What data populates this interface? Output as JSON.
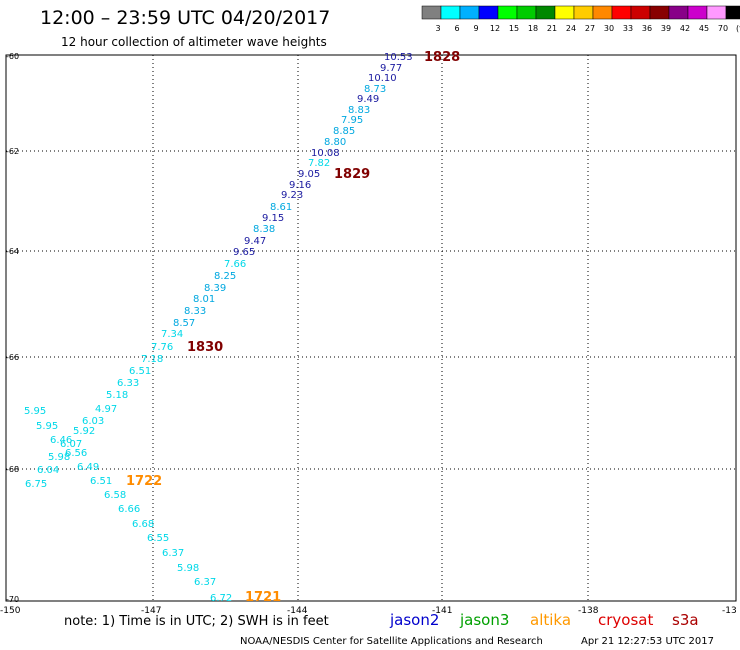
{
  "header": {
    "title": "12:00 – 23:59 UTC 04/20/2017",
    "subtitle": "12 hour collection of altimeter wave heights"
  },
  "legend": {
    "labels": [
      "3",
      "6",
      "9",
      "12",
      "15",
      "18",
      "21",
      "24",
      "27",
      "30",
      "33",
      "36",
      "39",
      "42",
      "45",
      "70",
      "(ft)"
    ],
    "colors": [
      "#808080",
      "#00ffff",
      "#00b0ff",
      "#0000ff",
      "#00ff00",
      "#00cc00",
      "#008800",
      "#ffff00",
      "#ffcc00",
      "#ff8800",
      "#ff0000",
      "#cc0000",
      "#880000",
      "#880088",
      "#cc00cc",
      "#ff99ff",
      "#000000"
    ]
  },
  "axes": {
    "lat_labels": [
      "-60",
      "-62",
      "-64",
      "-66",
      "-68",
      "-70"
    ],
    "lon_labels": [
      "-150",
      "-147",
      "-144",
      "-141",
      "-138",
      "-13"
    ]
  },
  "observations": [
    {
      "v": "10.53",
      "c": "#1a1aa0"
    },
    {
      "v": "9.77",
      "c": "#1a1aa0"
    },
    {
      "v": "10.10",
      "c": "#1a1aa0"
    },
    {
      "v": "8.73",
      "c": "#00a8e0"
    },
    {
      "v": "9.49",
      "c": "#1a1aa0"
    },
    {
      "v": "8.83",
      "c": "#00a8e0"
    },
    {
      "v": "7.95",
      "c": "#00a8e0"
    },
    {
      "v": "8.85",
      "c": "#00a8e0"
    },
    {
      "v": "8.80",
      "c": "#00a8e0"
    },
    {
      "v": "10.08",
      "c": "#1a1aa0"
    },
    {
      "v": "7.82",
      "c": "#00d8e8"
    },
    {
      "v": "9.05",
      "c": "#1a1aa0"
    },
    {
      "v": "9.16",
      "c": "#1a1aa0"
    },
    {
      "v": "9.23",
      "c": "#1a1aa0"
    },
    {
      "v": "8.61",
      "c": "#00a8e0"
    },
    {
      "v": "9.15",
      "c": "#1a1aa0"
    },
    {
      "v": "8.38",
      "c": "#00a8e0"
    },
    {
      "v": "9.47",
      "c": "#1a1aa0"
    },
    {
      "v": "9.65",
      "c": "#1a1aa0"
    },
    {
      "v": "7.66",
      "c": "#00d8e8"
    },
    {
      "v": "8.25",
      "c": "#00a8e0"
    },
    {
      "v": "8.39",
      "c": "#00a8e0"
    },
    {
      "v": "8.01",
      "c": "#00a8e0"
    },
    {
      "v": "8.33",
      "c": "#00a8e0"
    },
    {
      "v": "8.57",
      "c": "#00a8e0"
    },
    {
      "v": "7.34",
      "c": "#00d8e8"
    },
    {
      "v": "7.76",
      "c": "#00d8e8"
    },
    {
      "v": "7.18",
      "c": "#00d8e8"
    },
    {
      "v": "6.51",
      "c": "#00d8e8"
    },
    {
      "v": "6.33",
      "c": "#00d8e8"
    },
    {
      "v": "5.18",
      "c": "#00d8e8"
    },
    {
      "v": "4.97",
      "c": "#00d8e8"
    },
    {
      "v": "5.95",
      "c": "#00d8e8"
    },
    {
      "v": "5.95",
      "c": "#00d8e8"
    },
    {
      "v": "6.03",
      "c": "#00d8e8"
    },
    {
      "v": "5.92",
      "c": "#00d8e8"
    },
    {
      "v": "6.46",
      "c": "#00d8e8"
    },
    {
      "v": "6.07",
      "c": "#00d8e8"
    },
    {
      "v": "6.56",
      "c": "#00d8e8"
    },
    {
      "v": "5.98",
      "c": "#00d8e8"
    },
    {
      "v": "6.49",
      "c": "#00d8e8"
    },
    {
      "v": "6.04",
      "c": "#00d8e8"
    },
    {
      "v": "6.75",
      "c": "#00d8e8"
    },
    {
      "v": "6.51",
      "c": "#00d8e8"
    },
    {
      "v": "6.58",
      "c": "#00d8e8"
    },
    {
      "v": "6.66",
      "c": "#00d8e8"
    },
    {
      "v": "6.68",
      "c": "#00d8e8"
    },
    {
      "v": "6.55",
      "c": "#00d8e8"
    },
    {
      "v": "6.37",
      "c": "#00d8e8"
    },
    {
      "v": "5.98",
      "c": "#00d8e8"
    },
    {
      "v": "6.37",
      "c": "#00d8e8"
    },
    {
      "v": "6.72",
      "c": "#00d8e8"
    }
  ],
  "time_stamps": [
    {
      "t": "1828",
      "c": "#800000"
    },
    {
      "t": "1829",
      "c": "#800000"
    },
    {
      "t": "1830",
      "c": "#800000"
    },
    {
      "t": "1722",
      "c": "#ff8c00"
    },
    {
      "t": "1721",
      "c": "#ff8c00"
    }
  ],
  "footer": {
    "note": "note: 1) Time is in UTC; 2) SWH is in feet",
    "satellites": [
      {
        "name": "jason2",
        "color": "#0000cc"
      },
      {
        "name": "jason3",
        "color": "#00a000"
      },
      {
        "name": "altika",
        "color": "#ff9900"
      },
      {
        "name": "cryosat",
        "color": "#dd0000"
      },
      {
        "name": "s3a",
        "color": "#aa0000"
      }
    ],
    "credit": "NOAA/NESDIS Center for Satellite Applications and Research",
    "timestamp": "Apr 21 12:27:53 UTC 2017"
  }
}
